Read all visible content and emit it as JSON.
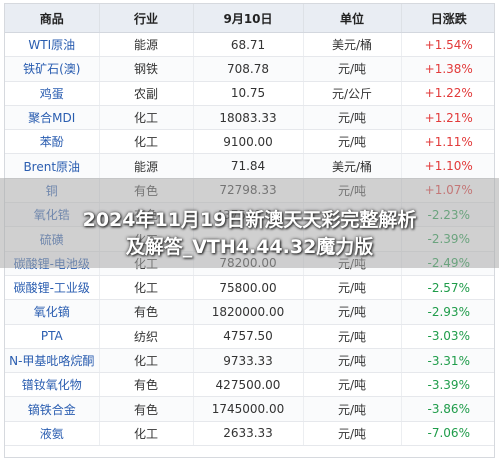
{
  "table": {
    "headers": [
      "商品",
      "行业",
      "9月10日",
      "单位",
      "日涨跌"
    ],
    "rows": [
      {
        "name": "WTI原油",
        "industry": "能源",
        "price": "68.71",
        "unit": "美元/桶",
        "change": "+1.54%",
        "dir": "pos"
      },
      {
        "name": "铁矿石(澳)",
        "industry": "钢铁",
        "price": "708.78",
        "unit": "元/吨",
        "change": "+1.38%",
        "dir": "pos"
      },
      {
        "name": "鸡蛋",
        "industry": "农副",
        "price": "10.75",
        "unit": "元/公斤",
        "change": "+1.22%",
        "dir": "pos"
      },
      {
        "name": "聚合MDI",
        "industry": "化工",
        "price": "18083.33",
        "unit": "元/吨",
        "change": "+1.21%",
        "dir": "pos"
      },
      {
        "name": "苯酚",
        "industry": "化工",
        "price": "9100.00",
        "unit": "元/吨",
        "change": "+1.11%",
        "dir": "pos"
      },
      {
        "name": "Brent原油",
        "industry": "能源",
        "price": "71.84",
        "unit": "美元/桶",
        "change": "+1.10%",
        "dir": "pos"
      },
      {
        "name": "铜",
        "industry": "有色",
        "price": "72798.33",
        "unit": "元/吨",
        "change": "+1.07%",
        "dir": "pos"
      },
      {
        "name": "氧化锆",
        "industry": "有色",
        "price": "437500.00",
        "unit": "",
        "change": "-2.23%",
        "dir": "neg"
      },
      {
        "name": "硫磺",
        "industry": "化工",
        "price": "",
        "unit": "",
        "change": "-2.39%",
        "dir": "neg"
      },
      {
        "name": "碳酸锂-电池级",
        "industry": "化工",
        "price": "78200.00",
        "unit": "元/吨",
        "change": "-2.49%",
        "dir": "neg"
      },
      {
        "name": "碳酸锂-工业级",
        "industry": "化工",
        "price": "75800.00",
        "unit": "元/吨",
        "change": "-2.57%",
        "dir": "neg"
      },
      {
        "name": "氧化镝",
        "industry": "有色",
        "price": "1820000.00",
        "unit": "元/吨",
        "change": "-2.93%",
        "dir": "neg"
      },
      {
        "name": "PTA",
        "industry": "纺织",
        "price": "4757.50",
        "unit": "元/吨",
        "change": "-3.03%",
        "dir": "neg"
      },
      {
        "name": "N-甲基吡咯烷酮",
        "industry": "化工",
        "price": "9733.33",
        "unit": "元/吨",
        "change": "-3.31%",
        "dir": "neg"
      },
      {
        "name": "镨钕氧化物",
        "industry": "有色",
        "price": "427500.00",
        "unit": "元/吨",
        "change": "-3.39%",
        "dir": "neg"
      },
      {
        "name": "镝铁合金",
        "industry": "有色",
        "price": "1745000.00",
        "unit": "元/吨",
        "change": "-3.86%",
        "dir": "neg"
      },
      {
        "name": "液氨",
        "industry": "化工",
        "price": "2633.33",
        "unit": "元/吨",
        "change": "-7.06%",
        "dir": "neg"
      }
    ]
  },
  "overlay": {
    "line1": "2024年11月19日新澳天天彩完整解析",
    "line2": "及解答_VTH4.44.32魔力版"
  },
  "colors": {
    "up": "#e23a3a",
    "down": "#1f9c4a",
    "name": "#2a5db0",
    "header_bg": "#e9edf3"
  }
}
